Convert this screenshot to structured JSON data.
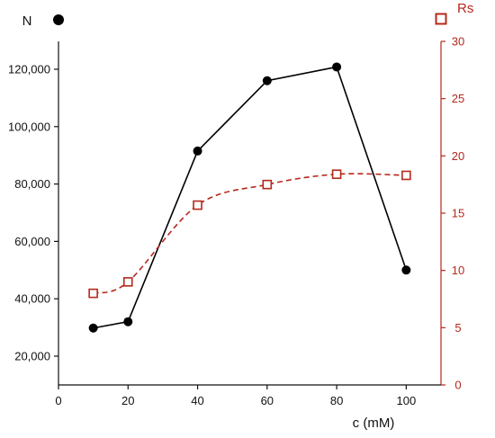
{
  "chart_data": {
    "type": "line",
    "xlabel": "c (mM)",
    "x_ticks": [
      "0",
      "20",
      "40",
      "60",
      "80",
      "100"
    ],
    "xlim": [
      0,
      110
    ],
    "y_left": {
      "label": "N",
      "ticks": [
        "20,000",
        "40,000",
        "60,000",
        "80,000",
        "100,000",
        "120,000"
      ],
      "tick_values": [
        20000,
        40000,
        60000,
        80000,
        100000,
        120000
      ],
      "ylim": [
        10000,
        135000
      ]
    },
    "y_right": {
      "label": "Rs",
      "ticks": [
        "0",
        "5",
        "10",
        "15",
        "20",
        "25",
        "30"
      ],
      "tick_values": [
        0,
        5,
        10,
        15,
        20,
        25,
        30
      ],
      "ylim": [
        0,
        30
      ]
    },
    "series": [
      {
        "name": "N",
        "axis": "left",
        "marker": "filled-circle",
        "line": "solid",
        "color": "#000000",
        "x": [
          10,
          20,
          40,
          60,
          80,
          100
        ],
        "y": [
          29800,
          32000,
          91500,
          116000,
          120800,
          50000
        ]
      },
      {
        "name": "Rs",
        "axis": "right",
        "marker": "open-square",
        "line": "dashed",
        "color": "#b5281b",
        "x": [
          10,
          20,
          40,
          60,
          80,
          100
        ],
        "y": [
          8,
          9,
          15.7,
          17.5,
          18.4,
          18.3
        ]
      }
    ],
    "grid": false,
    "legend": "top"
  }
}
